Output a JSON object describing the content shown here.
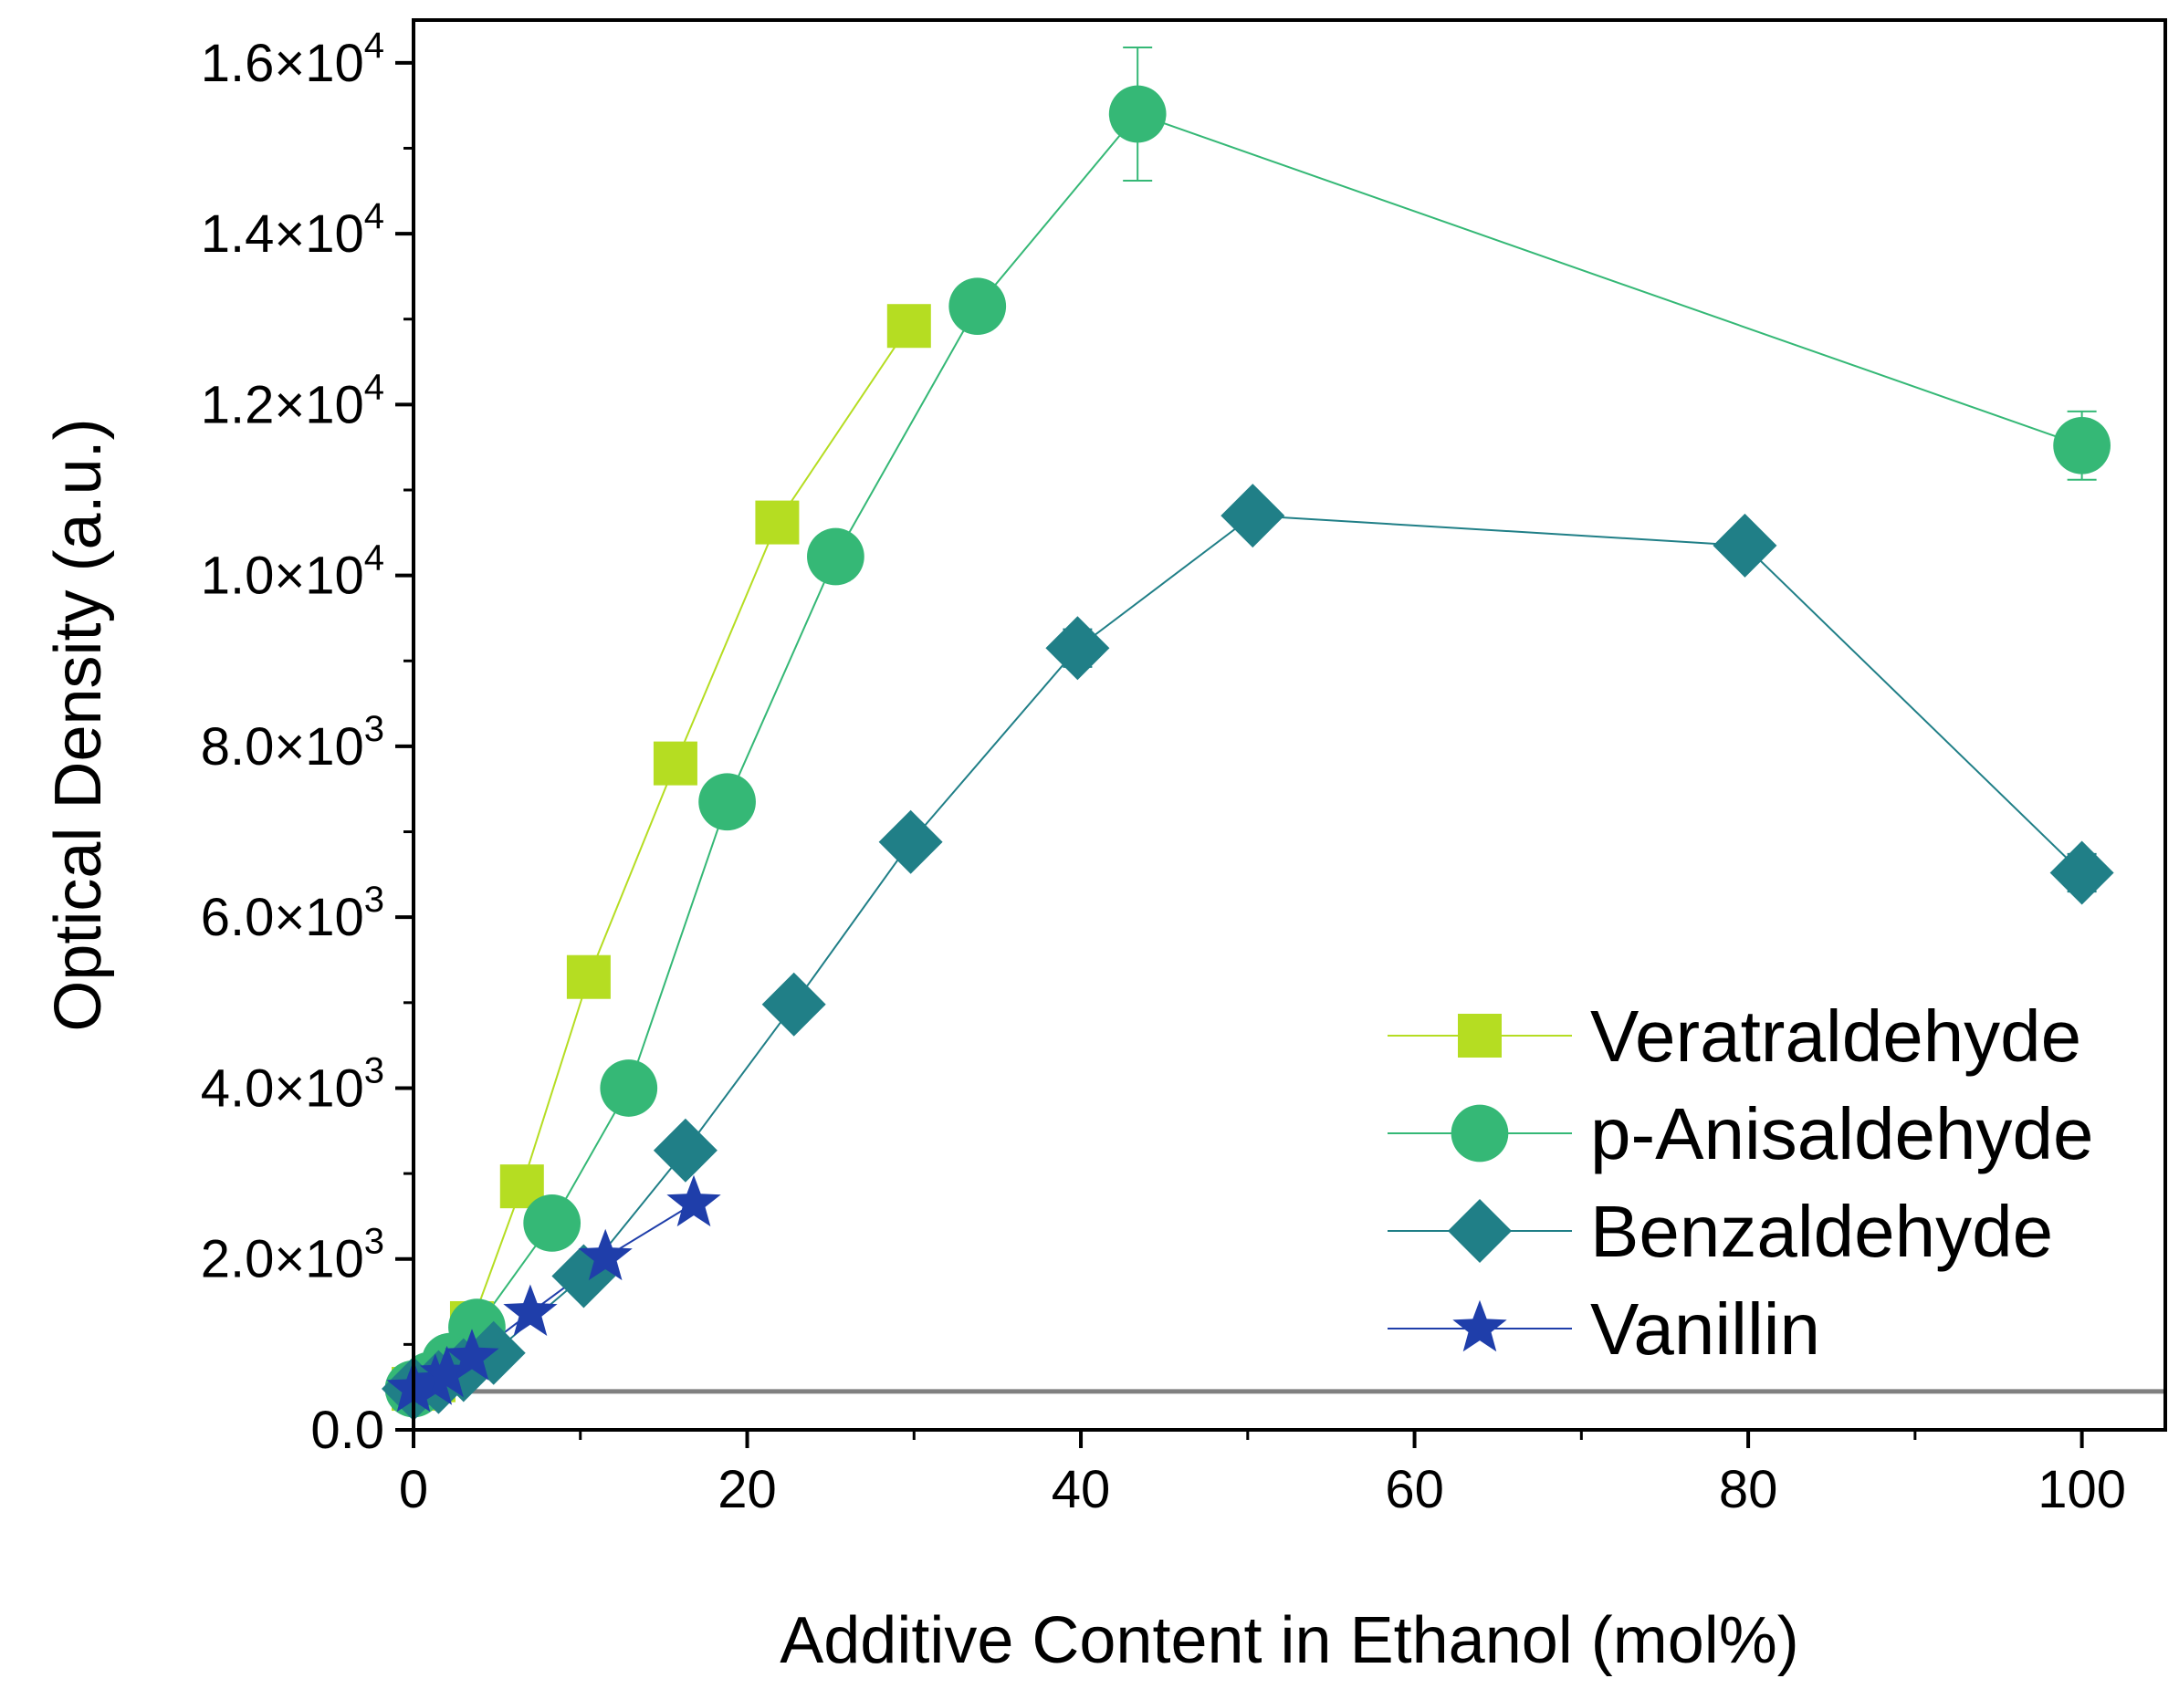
{
  "chart_data": {
    "type": "line",
    "xlabel": "Additive Content in Ethanol (mol%)",
    "ylabel": "Optical Density (a.u.)",
    "xlim": [
      0,
      105
    ],
    "ylim": [
      0,
      16500
    ],
    "x_ticks": [
      0,
      20,
      40,
      60,
      80,
      100
    ],
    "x_tick_labels": [
      "0",
      "20",
      "40",
      "60",
      "80",
      "100"
    ],
    "y_ticks": [
      0,
      2000,
      4000,
      6000,
      8000,
      10000,
      12000,
      14000,
      16000
    ],
    "y_tick_labels": [
      {
        "mantissa": "0.0",
        "exponent": ""
      },
      {
        "mantissa": "2.0×10",
        "exponent": "3"
      },
      {
        "mantissa": "4.0×10",
        "exponent": "3"
      },
      {
        "mantissa": "6.0×10",
        "exponent": "3"
      },
      {
        "mantissa": "8.0×10",
        "exponent": "3"
      },
      {
        "mantissa": "1.0×10",
        "exponent": "4"
      },
      {
        "mantissa": "1.2×10",
        "exponent": "4"
      },
      {
        "mantissa": "1.4×10",
        "exponent": "4"
      },
      {
        "mantissa": "1.6×10",
        "exponent": "4"
      }
    ],
    "baseline": {
      "y": 450,
      "color": "#808080"
    },
    "legend_position": "bottom-right",
    "series": [
      {
        "name": "Veratraldehyde",
        "marker": "square",
        "color": "#b5dd22",
        "x": [
          0,
          1.2,
          2.3,
          3.5,
          6.5,
          10.5,
          15.7,
          21.8,
          29.7
        ],
        "y": [
          480,
          580,
          750,
          1250,
          2850,
          5300,
          7800,
          10620,
          12920
        ],
        "err": [
          0,
          0,
          0,
          0,
          0,
          0,
          0,
          0,
          0
        ]
      },
      {
        "name": "p-Anisaldehyde",
        "marker": "circle",
        "color": "#35b876",
        "x": [
          0,
          1.0,
          2.2,
          3.8,
          8.3,
          12.9,
          18.8,
          25.3,
          33.8,
          43.4,
          100
        ],
        "y": [
          480,
          580,
          800,
          1200,
          2420,
          4000,
          7350,
          10220,
          13150,
          15400,
          11520
        ],
        "err": [
          0,
          0,
          0,
          150,
          0,
          0,
          0,
          280,
          0,
          780,
          400
        ]
      },
      {
        "name": "Benzaldehyde",
        "marker": "diamond",
        "color": "#207f87",
        "x": [
          0,
          1.5,
          3.0,
          4.8,
          10.2,
          16.3,
          22.8,
          29.8,
          39.8,
          50.3,
          79.8,
          100
        ],
        "y": [
          480,
          560,
          700,
          900,
          1800,
          3270,
          4980,
          6880,
          9150,
          10700,
          10350,
          6520
        ],
        "err": [
          0,
          0,
          0,
          0,
          0,
          0,
          150,
          0,
          220,
          0,
          0,
          220
        ]
      },
      {
        "name": "Vanillin",
        "marker": "star",
        "color": "#1f3eaa",
        "x": [
          0,
          1.3,
          2.0,
          3.5,
          7.0,
          11.5,
          16.8
        ],
        "y": [
          480,
          560,
          650,
          850,
          1370,
          2020,
          2650
        ],
        "err": [
          0,
          0,
          0,
          0,
          0,
          0,
          0
        ]
      }
    ]
  }
}
